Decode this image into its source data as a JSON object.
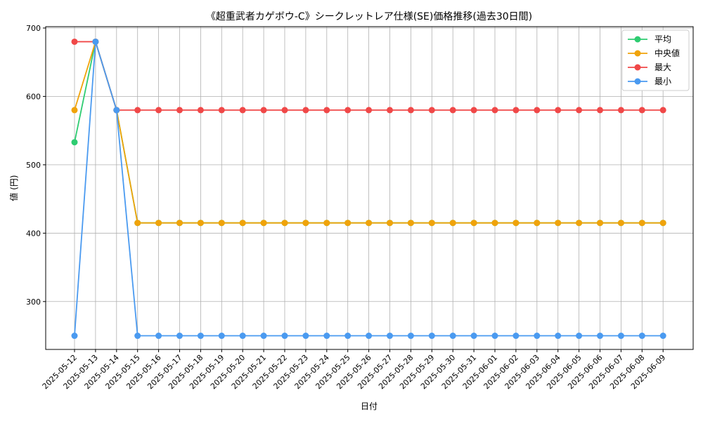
{
  "chart_data": {
    "type": "line",
    "title": "《超重武者カゲボウ-C》シークレットレア仕様(SE)価格推移(過去30日間)",
    "xlabel": "日付",
    "ylabel": "値 (円)",
    "ylim": [
      230,
      702
    ],
    "yticks": [
      300,
      400,
      500,
      600,
      700
    ],
    "grid": true,
    "legend_position": "top-right",
    "x": [
      "2025-05-12",
      "2025-05-13",
      "2025-05-14",
      "2025-05-15",
      "2025-05-16",
      "2025-05-17",
      "2025-05-18",
      "2025-05-19",
      "2025-05-20",
      "2025-05-21",
      "2025-05-22",
      "2025-05-23",
      "2025-05-24",
      "2025-05-25",
      "2025-05-26",
      "2025-05-27",
      "2025-05-28",
      "2025-05-29",
      "2025-05-30",
      "2025-05-31",
      "2025-06-01",
      "2025-06-02",
      "2025-06-03",
      "2025-06-04",
      "2025-06-05",
      "2025-06-06",
      "2025-06-07",
      "2025-06-08",
      "2025-06-09"
    ],
    "series": [
      {
        "name": "平均",
        "color": "#2ecc71",
        "values": [
          533,
          680,
          580,
          415,
          415,
          415,
          415,
          415,
          415,
          415,
          415,
          415,
          415,
          415,
          415,
          415,
          415,
          415,
          415,
          415,
          415,
          415,
          415,
          415,
          415,
          415,
          415,
          415,
          415
        ]
      },
      {
        "name": "中央値",
        "color": "#f0a30a",
        "values": [
          580,
          680,
          580,
          415,
          415,
          415,
          415,
          415,
          415,
          415,
          415,
          415,
          415,
          415,
          415,
          415,
          415,
          415,
          415,
          415,
          415,
          415,
          415,
          415,
          415,
          415,
          415,
          415,
          415
        ]
      },
      {
        "name": "最大",
        "color": "#f04848",
        "values": [
          680,
          680,
          580,
          580,
          580,
          580,
          580,
          580,
          580,
          580,
          580,
          580,
          580,
          580,
          580,
          580,
          580,
          580,
          580,
          580,
          580,
          580,
          580,
          580,
          580,
          580,
          580,
          580,
          580
        ]
      },
      {
        "name": "最小",
        "color": "#4a9af0",
        "values": [
          250,
          680,
          580,
          250,
          250,
          250,
          250,
          250,
          250,
          250,
          250,
          250,
          250,
          250,
          250,
          250,
          250,
          250,
          250,
          250,
          250,
          250,
          250,
          250,
          250,
          250,
          250,
          250,
          250
        ]
      }
    ]
  }
}
